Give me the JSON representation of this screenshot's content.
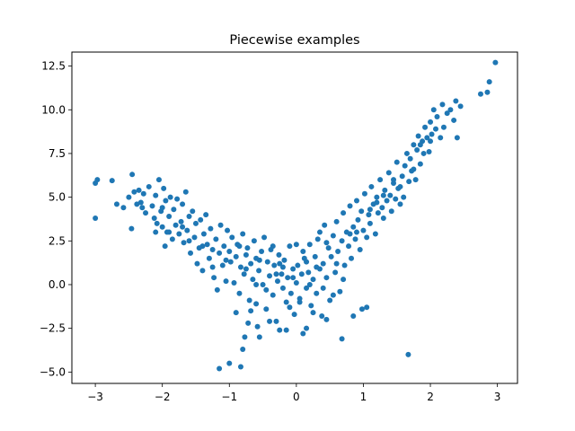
{
  "chart_data": {
    "type": "scatter",
    "title": "Piecewise examples",
    "xlabel": "",
    "ylabel": "",
    "xlim": [
      -3.35,
      3.3
    ],
    "ylim": [
      -5.65,
      13.3
    ],
    "xticks": [
      -3,
      -2,
      -1,
      0,
      1,
      2,
      3
    ],
    "xtick_labels": [
      "−3",
      "−2",
      "−1",
      "0",
      "1",
      "2",
      "3"
    ],
    "yticks": [
      -5.0,
      -2.5,
      0.0,
      2.5,
      5.0,
      7.5,
      10.0,
      12.5
    ],
    "ytick_labels": [
      "−5.0",
      "−2.5",
      "0.0",
      "2.5",
      "5.0",
      "7.5",
      "10.0",
      "12.5"
    ],
    "grid": false,
    "point_color": "#1f77b4",
    "series": [
      {
        "points": [
          [
            -3.0,
            5.8
          ],
          [
            -2.97,
            6.0
          ],
          [
            -3.0,
            3.8
          ],
          [
            -2.75,
            5.95
          ],
          [
            -2.68,
            4.6
          ],
          [
            -2.58,
            4.4
          ],
          [
            -2.5,
            5.0
          ],
          [
            -2.45,
            6.3
          ],
          [
            -2.42,
            5.3
          ],
          [
            -2.38,
            4.6
          ],
          [
            -2.35,
            5.4
          ],
          [
            -2.32,
            4.7
          ],
          [
            -2.28,
            5.2
          ],
          [
            -2.25,
            4.1
          ],
          [
            -2.46,
            3.2
          ],
          [
            -2.2,
            5.6
          ],
          [
            -2.15,
            4.5
          ],
          [
            -2.12,
            3.8
          ],
          [
            -2.1,
            5.1
          ],
          [
            -2.08,
            3.5
          ],
          [
            -2.05,
            6.0
          ],
          [
            -2.02,
            4.2
          ],
          [
            -2.0,
            3.3
          ],
          [
            -1.98,
            5.5
          ],
          [
            -1.96,
            2.2
          ],
          [
            -1.95,
            4.8
          ],
          [
            -1.93,
            3.0
          ],
          [
            -1.9,
            3.9
          ],
          [
            -1.88,
            5.0
          ],
          [
            -1.85,
            2.6
          ],
          [
            -1.83,
            4.3
          ],
          [
            -1.8,
            3.4
          ],
          [
            -1.78,
            4.9
          ],
          [
            -1.75,
            2.9
          ],
          [
            -1.72,
            3.6
          ],
          [
            -1.7,
            4.6
          ],
          [
            -1.68,
            2.4
          ],
          [
            -1.65,
            5.3
          ],
          [
            -1.63,
            3.1
          ],
          [
            -1.6,
            3.9
          ],
          [
            -1.58,
            1.8
          ],
          [
            -1.55,
            4.2
          ],
          [
            -1.52,
            2.7
          ],
          [
            -1.5,
            3.5
          ],
          [
            -1.48,
            1.2
          ],
          [
            -1.45,
            2.1
          ],
          [
            -1.43,
            3.7
          ],
          [
            -1.4,
            0.8
          ],
          [
            -1.38,
            2.9
          ],
          [
            -1.35,
            4.0
          ],
          [
            -1.33,
            2.3
          ],
          [
            -1.3,
            1.5
          ],
          [
            -1.28,
            3.2
          ],
          [
            -1.25,
            2.0
          ],
          [
            -1.23,
            0.4
          ],
          [
            -1.2,
            2.6
          ],
          [
            -1.18,
            -0.3
          ],
          [
            -1.15,
            1.8
          ],
          [
            -1.13,
            3.4
          ],
          [
            -1.1,
            1.1
          ],
          [
            -1.08,
            2.2
          ],
          [
            -1.05,
            0.2
          ],
          [
            -1.03,
            3.1
          ],
          [
            -1.0,
            1.9
          ],
          [
            -0.98,
            1.3
          ],
          [
            -0.96,
            2.7
          ],
          [
            -0.93,
            0.1
          ],
          [
            -0.9,
            1.6
          ],
          [
            -0.88,
            2.3
          ],
          [
            -0.85,
            -0.5
          ],
          [
            -0.83,
            1.0
          ],
          [
            -0.8,
            2.9
          ],
          [
            -0.78,
            0.6
          ],
          [
            -0.75,
            1.7
          ],
          [
            -0.73,
            2.1
          ],
          [
            -0.7,
            -0.9
          ],
          [
            -0.68,
            1.2
          ],
          [
            -0.65,
            0.3
          ],
          [
            -0.63,
            2.5
          ],
          [
            -0.6,
            1.5
          ],
          [
            -0.58,
            -2.4
          ],
          [
            -0.56,
            0.8
          ],
          [
            -0.55,
            -3.0
          ],
          [
            -0.52,
            1.9
          ],
          [
            -0.5,
            0.0
          ],
          [
            -0.48,
            2.7
          ],
          [
            -0.45,
            -1.4
          ],
          [
            -0.43,
            1.3
          ],
          [
            -0.4,
            0.5
          ],
          [
            -0.38,
            2.0
          ],
          [
            -0.35,
            -0.6
          ],
          [
            -0.33,
            1.1
          ],
          [
            -0.3,
            -2.1
          ],
          [
            -0.28,
            0.2
          ],
          [
            -0.26,
            1.7
          ],
          [
            -0.25,
            -2.6
          ],
          [
            -0.22,
            0.6
          ],
          [
            -0.2,
            -0.2
          ],
          [
            -0.18,
            1.4
          ],
          [
            -0.15,
            -1.0
          ],
          [
            -0.13,
            0.4
          ],
          [
            -0.1,
            2.2
          ],
          [
            -0.08,
            -0.5
          ],
          [
            -0.05,
            0.9
          ],
          [
            -0.03,
            -1.7
          ],
          [
            0.0,
            0.1
          ],
          [
            0.02,
            1.1
          ],
          [
            0.05,
            -0.8
          ],
          [
            0.08,
            0.6
          ],
          [
            0.1,
            -2.8
          ],
          [
            0.12,
            1.5
          ],
          [
            0.15,
            -0.2
          ],
          [
            0.18,
            0.7
          ],
          [
            0.2,
            2.3
          ],
          [
            0.22,
            -1.2
          ],
          [
            0.25,
            0.3
          ],
          [
            0.28,
            1.6
          ],
          [
            0.3,
            -0.5
          ],
          [
            0.32,
            2.6
          ],
          [
            0.35,
            0.9
          ],
          [
            0.38,
            -1.8
          ],
          [
            0.4,
            1.2
          ],
          [
            0.42,
            3.4
          ],
          [
            0.45,
            0.4
          ],
          [
            0.48,
            2.1
          ],
          [
            0.5,
            -0.9
          ],
          [
            0.52,
            1.6
          ],
          [
            0.55,
            2.8
          ],
          [
            0.58,
            0.7
          ],
          [
            0.6,
            3.6
          ],
          [
            0.62,
            1.9
          ],
          [
            0.65,
            -0.4
          ],
          [
            0.68,
            2.5
          ],
          [
            0.7,
            4.1
          ],
          [
            0.72,
            1.1
          ],
          [
            0.75,
            3.0
          ],
          [
            0.78,
            2.2
          ],
          [
            0.8,
            4.5
          ],
          [
            0.82,
            1.5
          ],
          [
            0.85,
            3.3
          ],
          [
            0.88,
            2.6
          ],
          [
            0.9,
            4.8
          ],
          [
            0.92,
            3.7
          ],
          [
            0.95,
            2.0
          ],
          [
            0.97,
            4.2
          ],
          [
            1.0,
            3.1
          ],
          [
            1.02,
            5.2
          ],
          [
            1.05,
            2.7
          ],
          [
            1.08,
            4.0
          ],
          [
            1.1,
            3.5
          ],
          [
            1.12,
            5.6
          ],
          [
            1.15,
            4.6
          ],
          [
            1.18,
            2.9
          ],
          [
            1.2,
            5.0
          ],
          [
            1.22,
            4.1
          ],
          [
            1.25,
            6.0
          ],
          [
            1.28,
            4.4
          ],
          [
            1.3,
            3.8
          ],
          [
            1.32,
            5.4
          ],
          [
            1.35,
            4.8
          ],
          [
            1.38,
            6.4
          ],
          [
            1.4,
            5.1
          ],
          [
            1.42,
            4.2
          ],
          [
            1.45,
            5.8
          ],
          [
            1.48,
            4.9
          ],
          [
            1.5,
            7.0
          ],
          [
            1.52,
            5.5
          ],
          [
            1.55,
            4.6
          ],
          [
            1.58,
            6.2
          ],
          [
            1.6,
            5.0
          ],
          [
            1.62,
            6.8
          ],
          [
            1.65,
            7.5
          ],
          [
            1.68,
            5.9
          ],
          [
            1.7,
            7.2
          ],
          [
            1.72,
            6.5
          ],
          [
            1.75,
            8.0
          ],
          [
            1.78,
            6.0
          ],
          [
            1.8,
            7.7
          ],
          [
            1.82,
            8.5
          ],
          [
            1.85,
            6.9
          ],
          [
            1.88,
            8.2
          ],
          [
            1.9,
            7.5
          ],
          [
            1.92,
            9.0
          ],
          [
            1.95,
            8.4
          ],
          [
            1.98,
            7.6
          ],
          [
            2.0,
            9.3
          ],
          [
            2.02,
            8.6
          ],
          [
            2.05,
            10.0
          ],
          [
            2.08,
            8.9
          ],
          [
            2.1,
            9.6
          ],
          [
            2.15,
            8.4
          ],
          [
            2.18,
            10.3
          ],
          [
            2.2,
            9.0
          ],
          [
            2.25,
            9.8
          ],
          [
            2.3,
            10.0
          ],
          [
            2.35,
            9.4
          ],
          [
            2.38,
            10.5
          ],
          [
            2.4,
            8.4
          ],
          [
            2.45,
            10.2
          ],
          [
            2.75,
            10.9
          ],
          [
            2.85,
            11.0
          ],
          [
            2.88,
            11.6
          ],
          [
            2.97,
            12.7
          ],
          [
            1.67,
            -4.0
          ],
          [
            -1.15,
            -4.8
          ],
          [
            -1.0,
            -4.5
          ],
          [
            -0.83,
            -4.7
          ],
          [
            -0.8,
            -3.7
          ],
          [
            -0.77,
            -3.0
          ],
          [
            -0.72,
            -2.2
          ],
          [
            -0.68,
            -1.5
          ],
          [
            -0.6,
            -1.1
          ],
          [
            0.68,
            -3.1
          ],
          [
            0.85,
            -1.8
          ],
          [
            0.98,
            -1.4
          ],
          [
            1.05,
            -1.3
          ],
          [
            -0.9,
            -1.6
          ],
          [
            -0.4,
            -2.1
          ],
          [
            0.15,
            -2.5
          ],
          [
            0.45,
            -2.0
          ],
          [
            -0.2,
            1.0
          ],
          [
            0.3,
            1.0
          ],
          [
            0.0,
            2.3
          ],
          [
            -0.1,
            -1.3
          ],
          [
            0.25,
            -1.6
          ],
          [
            -0.35,
            2.2
          ],
          [
            0.7,
            0.3
          ],
          [
            -0.6,
            0.0
          ],
          [
            0.55,
            -0.6
          ],
          [
            -0.45,
            -0.3
          ],
          [
            0.2,
            0.0
          ],
          [
            -0.05,
            0.4
          ],
          [
            0.1,
            1.9
          ],
          [
            -0.25,
            1.2
          ],
          [
            0.4,
            -0.2
          ],
          [
            0.6,
            1.2
          ],
          [
            -0.75,
            0.9
          ],
          [
            0.8,
            2.9
          ],
          [
            -1.25,
            1.0
          ],
          [
            1.1,
            4.3
          ],
          [
            -1.6,
            2.5
          ],
          [
            1.45,
            6.0
          ],
          [
            -1.9,
            3.0
          ],
          [
            1.75,
            6.6
          ],
          [
            -2.1,
            3.0
          ],
          [
            2.0,
            8.2
          ],
          [
            -2.3,
            4.4
          ],
          [
            0.35,
            3.0
          ],
          [
            -0.15,
            -2.6
          ],
          [
            0.05,
            -1.0
          ],
          [
            -0.3,
            0.6
          ],
          [
            0.15,
            1.3
          ],
          [
            -0.55,
            1.4
          ],
          [
            0.45,
            2.4
          ],
          [
            -0.85,
            2.2
          ],
          [
            0.9,
            3.0
          ],
          [
            -1.05,
            1.4
          ],
          [
            1.2,
            4.7
          ],
          [
            -1.4,
            2.2
          ],
          [
            1.3,
            5.1
          ],
          [
            -1.7,
            3.3
          ],
          [
            1.55,
            5.6
          ],
          [
            -2.0,
            4.4
          ],
          [
            1.85,
            8.0
          ]
        ]
      }
    ]
  }
}
